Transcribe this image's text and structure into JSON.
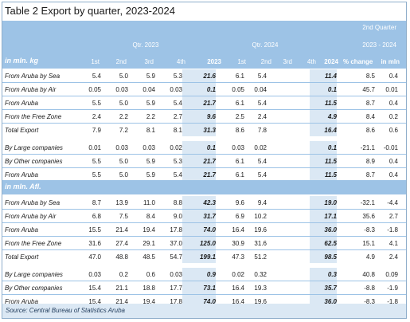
{
  "title": "Table 2 Export by quarter, 2023-2024",
  "header": {
    "q2023": "Qtr. 2023",
    "q2024": "Qtr. 2024",
    "second_quarter": "2nd Quarter",
    "range": "2023 - 2024",
    "unit_kg": "in mln. kg",
    "col_1st": "1st",
    "col_2nd": "2nd",
    "col_3rd": "3rd",
    "col_4th": "4th",
    "col_2023": "2023",
    "col_2024": "2024",
    "pct_change": "% change",
    "in_mln": "in mln"
  },
  "unit_afl": "in mln. Afl.",
  "source": "Source: Central Bureau of Statistics Aruba",
  "table_kg": [
    {
      "label": "From Aruba by Sea",
      "v": [
        "5.4",
        "5.0",
        "5.9",
        "5.3",
        "21.6",
        "6.1",
        "5.4",
        "",
        "",
        "11.4",
        "8.5",
        "0.4"
      ]
    },
    {
      "label": "From Aruba by Air",
      "v": [
        "0.05",
        "0.03",
        "0.04",
        "0.03",
        "0.1",
        "0.05",
        "0.04",
        "",
        "",
        "0.1",
        "45.7",
        "0.01"
      ]
    },
    {
      "label": "From Aruba",
      "v": [
        "5.5",
        "5.0",
        "5.9",
        "5.4",
        "21.7",
        "6.1",
        "5.4",
        "",
        "",
        "11.5",
        "8.7",
        "0.4"
      ]
    },
    {
      "label": "From the Free Zone",
      "v": [
        "2.4",
        "2.2",
        "2.2",
        "2.7",
        "9.6",
        "2.5",
        "2.4",
        "",
        "",
        "4.9",
        "8.4",
        "0.2"
      ]
    },
    {
      "label": "Total Export",
      "v": [
        "7.9",
        "7.2",
        "8.1",
        "8.1",
        "31.3",
        "8.6",
        "7.8",
        "",
        "",
        "16.4",
        "8.6",
        "0.6"
      ]
    },
    {
      "label": "By Large companies",
      "v": [
        "0.01",
        "0.03",
        "0.03",
        "0.02",
        "0.1",
        "0.03",
        "0.02",
        "",
        "",
        "0.1",
        "-21.1",
        "-0.01"
      ]
    },
    {
      "label": "By Other companies",
      "v": [
        "5.5",
        "5.0",
        "5.9",
        "5.3",
        "21.7",
        "6.1",
        "5.4",
        "",
        "",
        "11.5",
        "8.9",
        "0.4"
      ]
    },
    {
      "label": "From Aruba",
      "v": [
        "5.5",
        "5.0",
        "5.9",
        "5.4",
        "21.7",
        "6.1",
        "5.4",
        "",
        "",
        "11.5",
        "8.7",
        "0.4"
      ]
    }
  ],
  "table_afl": [
    {
      "label": "From Aruba by Sea",
      "v": [
        "8.7",
        "13.9",
        "11.0",
        "8.8",
        "42.3",
        "9.6",
        "9.4",
        "",
        "",
        "19.0",
        "-32.1",
        "-4.4"
      ]
    },
    {
      "label": "From Aruba by Air",
      "v": [
        "6.8",
        "7.5",
        "8.4",
        "9.0",
        "31.7",
        "6.9",
        "10.2",
        "",
        "",
        "17.1",
        "35.6",
        "2.7"
      ]
    },
    {
      "label": "From Aruba",
      "v": [
        "15.5",
        "21.4",
        "19.4",
        "17.8",
        "74.0",
        "16.4",
        "19.6",
        "",
        "",
        "36.0",
        "-8.3",
        "-1.8"
      ]
    },
    {
      "label": "From the Free Zone",
      "v": [
        "31.6",
        "27.4",
        "29.1",
        "37.0",
        "125.0",
        "30.9",
        "31.6",
        "",
        "",
        "62.5",
        "15.1",
        "4.1"
      ]
    },
    {
      "label": "Total Export",
      "v": [
        "47.0",
        "48.8",
        "48.5",
        "54.7",
        "199.1",
        "47.3",
        "51.2",
        "",
        "",
        "98.5",
        "4.9",
        "2.4"
      ]
    },
    {
      "label": "By Large companies",
      "v": [
        "0.03",
        "0.2",
        "0.6",
        "0.03",
        "0.9",
        "0.02",
        "0.32",
        "",
        "",
        "0.3",
        "40.8",
        "0.09"
      ]
    },
    {
      "label": "By Other companies",
      "v": [
        "15.4",
        "21.1",
        "18.8",
        "17.7",
        "73.1",
        "16.4",
        "19.3",
        "",
        "",
        "35.7",
        "-8.8",
        "-1.9"
      ]
    },
    {
      "label": "From Aruba",
      "v": [
        "15.4",
        "21.4",
        "19.4",
        "17.8",
        "74.0",
        "16.4",
        "19.6",
        "",
        "",
        "36.0",
        "-8.3",
        "-1.8"
      ]
    }
  ]
}
